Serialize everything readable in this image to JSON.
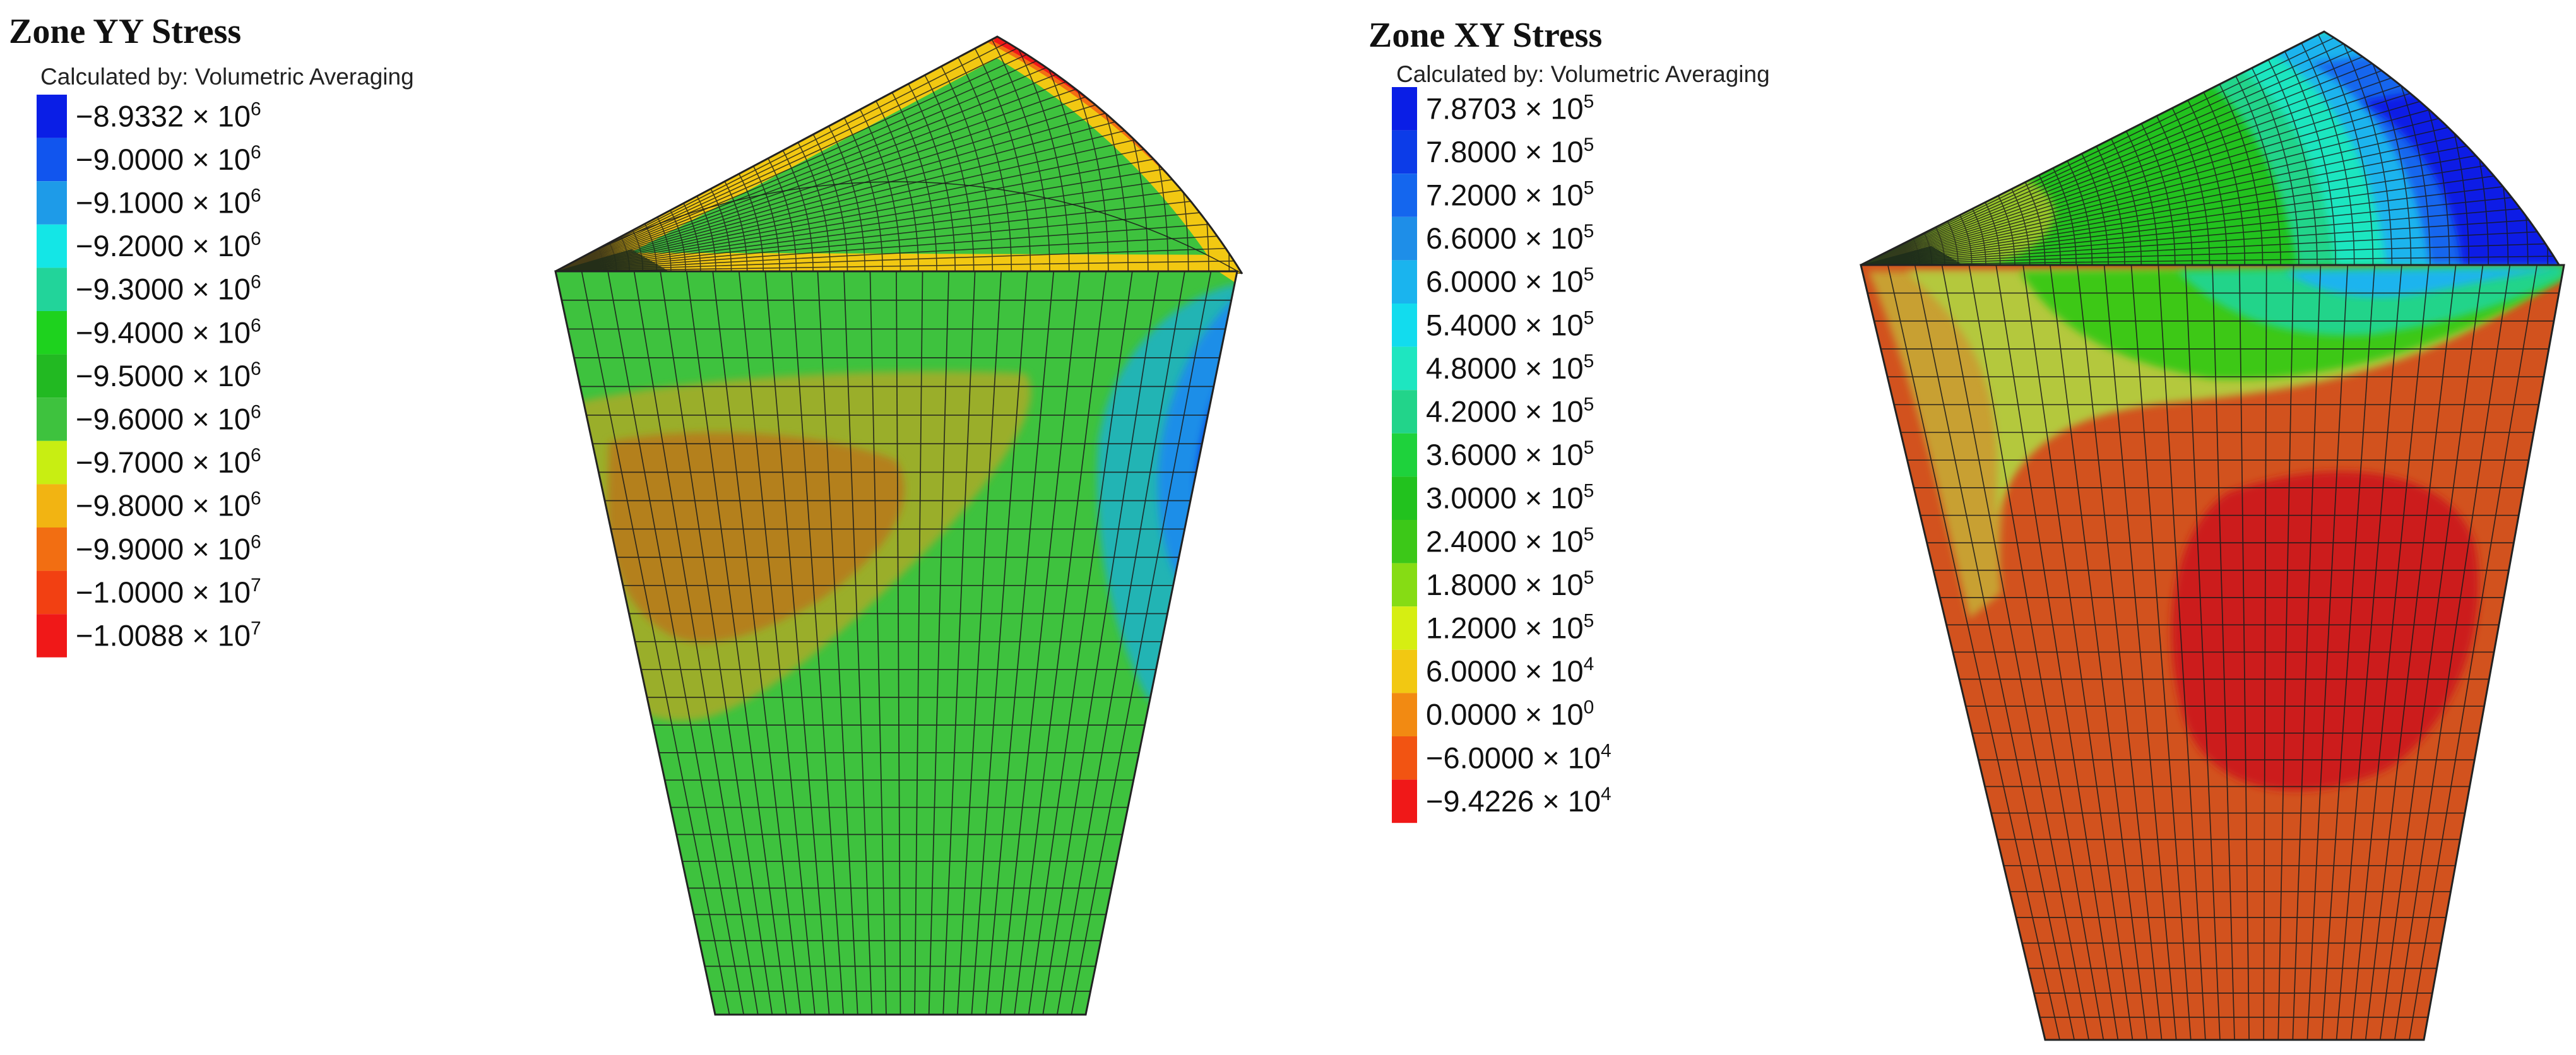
{
  "panels": [
    {
      "id": "yy",
      "title": "Zone YY Stress",
      "subtitle": "Calculated by: Volumetric Averaging",
      "legend": [
        {
          "mantissa": "−8.9332",
          "exponent": "6",
          "color": "#0a1ee6"
        },
        {
          "mantissa": "−9.0000",
          "exponent": "6",
          "color": "#1155ee"
        },
        {
          "mantissa": "−9.1000",
          "exponent": "6",
          "color": "#1e9be8"
        },
        {
          "mantissa": "−9.2000",
          "exponent": "6",
          "color": "#14e6e6"
        },
        {
          "mantissa": "−9.3000",
          "exponent": "6",
          "color": "#22d49a"
        },
        {
          "mantissa": "−9.4000",
          "exponent": "6",
          "color": "#1ed21e"
        },
        {
          "mantissa": "−9.5000",
          "exponent": "6",
          "color": "#22b922"
        },
        {
          "mantissa": "−9.6000",
          "exponent": "6",
          "color": "#3ec23e"
        },
        {
          "mantissa": "−9.7000",
          "exponent": "6",
          "color": "#c8ee12"
        },
        {
          "mantissa": "−9.8000",
          "exponent": "6",
          "color": "#f2b412"
        },
        {
          "mantissa": "−9.9000",
          "exponent": "6",
          "color": "#f26e12"
        },
        {
          "mantissa": "−1.0000",
          "exponent": "7",
          "color": "#f24012"
        },
        {
          "mantissa": "−1.0088",
          "exponent": "7",
          "color": "#f01818"
        }
      ]
    },
    {
      "id": "xy",
      "title": "Zone XY Stress",
      "subtitle": "Calculated by: Volumetric Averaging",
      "legend": [
        {
          "mantissa": "7.8703",
          "exponent": "5",
          "color": "#0a1ee6"
        },
        {
          "mantissa": "7.8000",
          "exponent": "5",
          "color": "#0c3ce8"
        },
        {
          "mantissa": "7.2000",
          "exponent": "5",
          "color": "#1466ee"
        },
        {
          "mantissa": "6.6000",
          "exponent": "5",
          "color": "#1e8ee8"
        },
        {
          "mantissa": "6.0000",
          "exponent": "5",
          "color": "#1ab4ee"
        },
        {
          "mantissa": "5.4000",
          "exponent": "5",
          "color": "#12dcee"
        },
        {
          "mantissa": "4.8000",
          "exponent": "5",
          "color": "#1ee6c0"
        },
        {
          "mantissa": "4.2000",
          "exponent": "5",
          "color": "#22d48a"
        },
        {
          "mantissa": "3.6000",
          "exponent": "5",
          "color": "#1ed23c"
        },
        {
          "mantissa": "3.0000",
          "exponent": "5",
          "color": "#22c21e"
        },
        {
          "mantissa": "2.4000",
          "exponent": "5",
          "color": "#3cc818"
        },
        {
          "mantissa": "1.8000",
          "exponent": "5",
          "color": "#86dc14"
        },
        {
          "mantissa": "1.2000",
          "exponent": "5",
          "color": "#d6ee12"
        },
        {
          "mantissa": "6.0000",
          "exponent": "4",
          "color": "#f2c812"
        },
        {
          "mantissa": "0.0000",
          "exponent": "0",
          "color": "#f28a12"
        },
        {
          "mantissa": "−6.0000",
          "exponent": "4",
          "color": "#f25412"
        },
        {
          "mantissa": "−9.4226",
          "exponent": "4",
          "color": "#f01818"
        }
      ]
    }
  ],
  "times_sign": "× 10"
}
